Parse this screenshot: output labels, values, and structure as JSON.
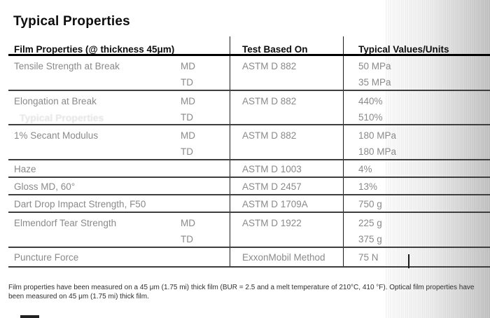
{
  "page": {
    "title": "Typical Properties",
    "ghost_text": "Typical Properties"
  },
  "table": {
    "headers": {
      "property": "Film Properties (@ thickness 45μm)",
      "test": "Test Based On",
      "values": "Typical Values/Units"
    },
    "rows": [
      {
        "property": "Tensile Strength at Break",
        "dir1": "MD",
        "dir2": "TD",
        "test": "ASTM D 882",
        "value1": "50 MPa",
        "value2": "35 MPa"
      },
      {
        "property": "Elongation at Break",
        "dir1": "MD",
        "dir2": "TD",
        "test": "ASTM D 882",
        "value1": "440%",
        "value2": "510%"
      },
      {
        "property": "1% Secant Modulus",
        "dir1": "MD",
        "dir2": "TD",
        "test": "ASTM D 882",
        "value1": "180 MPa",
        "value2": "180 MPa"
      },
      {
        "property": "Haze",
        "test": "ASTM D 1003",
        "value1": "4%"
      },
      {
        "property": "Gloss MD, 60°",
        "test": "ASTM D 2457",
        "value1": "13%"
      },
      {
        "property": "Dart Drop Impact Strength, F50",
        "test": "ASTM D 1709A",
        "value1": "750 g"
      },
      {
        "property": "Elmendorf Tear Strength",
        "dir1": "MD",
        "dir2": "TD",
        "test": "ASTM D 1922",
        "value1": "225 g",
        "value2": "375 g"
      },
      {
        "property": "Puncture Force",
        "test": "ExxonMobil Method",
        "value1": "75 N"
      }
    ]
  },
  "footer": {
    "note": "Film properties have been measured on a 45 μm (1.75 mi) thick film (BUR = 2.5 and a melt temperature of 210°C, 410 °F). Optical film properties have been measured on 45 μm (1.75 mi) thick film."
  },
  "colors": {
    "body_text": "#8a8a8a",
    "header_text": "#0d0d0d",
    "separator_line": "#3e3e3e",
    "header_line": "#000000"
  }
}
